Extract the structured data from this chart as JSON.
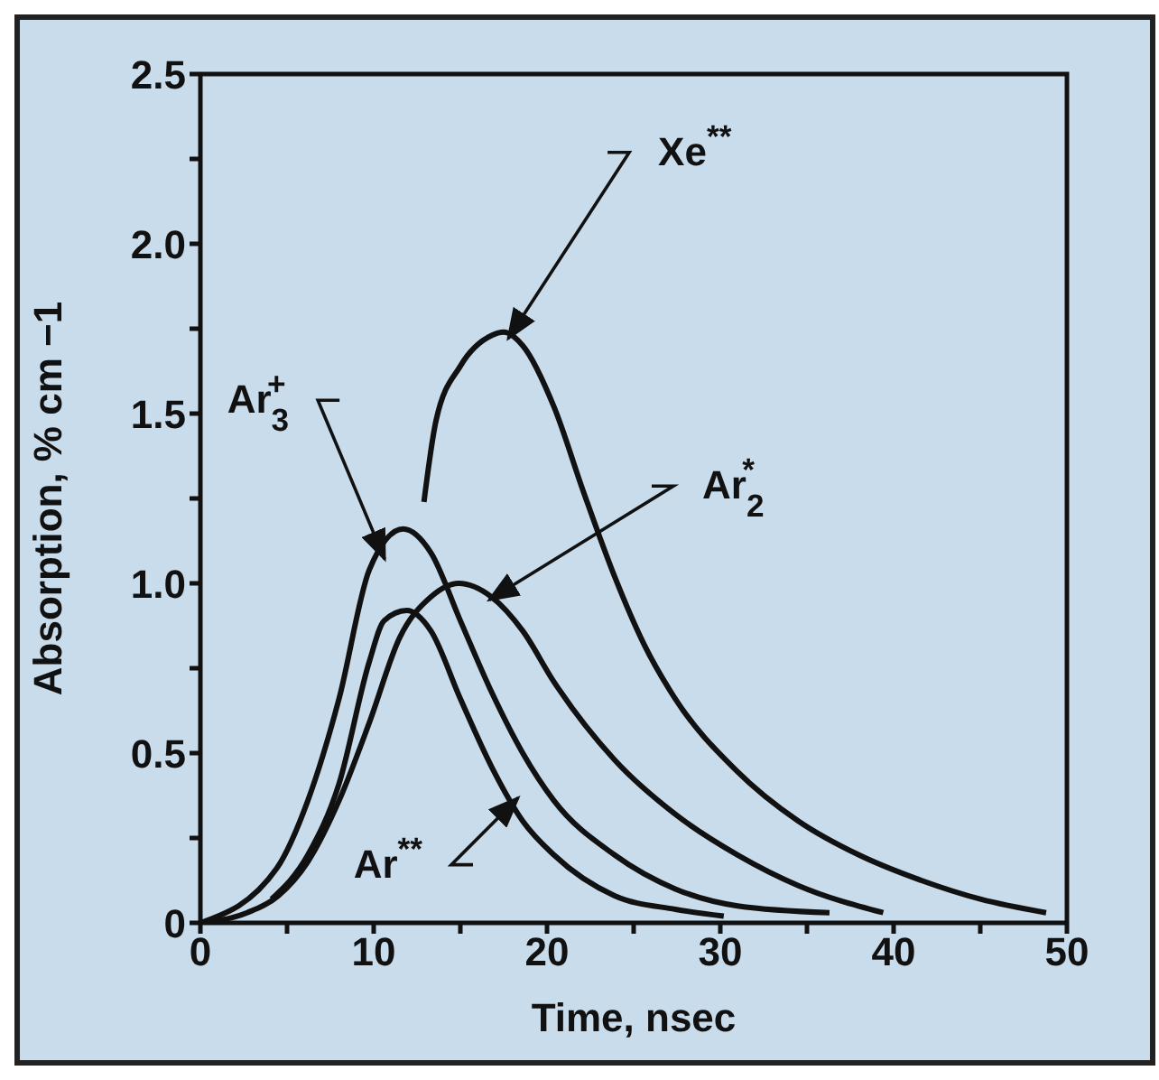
{
  "chart_data": {
    "type": "line",
    "xlabel": "Time, nsec",
    "ylabel": "Absorption, % cm −1",
    "xlim": [
      0,
      50
    ],
    "ylim": [
      0,
      2.5
    ],
    "xticks": [
      0,
      {
        "value": 5,
        "label": null
      },
      10,
      {
        "value": 15,
        "label": null
      },
      20,
      {
        "value": 25,
        "label": null
      },
      30,
      {
        "value": 35,
        "label": null
      },
      40,
      {
        "value": 45,
        "label": null
      },
      50
    ],
    "yticks": [
      0,
      {
        "value": 0.25,
        "label": null
      },
      0.5,
      {
        "value": 0.75,
        "label": null
      },
      {
        "value": 1,
        "label": "1.0"
      },
      {
        "value": 1.25,
        "label": null
      },
      1.5,
      {
        "value": 1.75,
        "label": null
      },
      {
        "value": 2,
        "label": "2.0"
      },
      {
        "value": 2.25,
        "label": null
      },
      2.5
    ],
    "marker": "none",
    "line_style": "solid",
    "series": [
      {
        "color": "#111111",
        "x": [
          0,
          4.4,
          6.2,
          8,
          9.75,
          11.7,
          13.3,
          15,
          16.8,
          18.6,
          20.4,
          23.9,
          27.4,
          31,
          36.3
        ],
        "values": [
          0,
          0.16,
          0.36,
          0.66,
          1.04,
          1.16,
          1.09,
          0.89,
          0.68,
          0.5,
          0.36,
          0.2,
          0.1,
          0.05,
          0.03
        ]
      },
      {
        "color": "#111111",
        "x": [
          4.1,
          6.2,
          8,
          9.75,
          10.6,
          11.9,
          13.3,
          15,
          16.8,
          18.6,
          20.4,
          23.9,
          27.4,
          30.2
        ],
        "values": [
          0.07,
          0.2,
          0.41,
          0.77,
          0.89,
          0.92,
          0.86,
          0.66,
          0.46,
          0.3,
          0.2,
          0.08,
          0.04,
          0.02
        ]
      },
      {
        "color": "#111111",
        "x": [
          0,
          2.7,
          4.5,
          6.2,
          8,
          9.75,
          11.5,
          13.3,
          14.9,
          16.8,
          18.6,
          20.4,
          23.9,
          27.4,
          31,
          34.5,
          39.4
        ],
        "values": [
          0,
          0.03,
          0.08,
          0.18,
          0.36,
          0.59,
          0.84,
          0.96,
          1.0,
          0.96,
          0.86,
          0.71,
          0.48,
          0.32,
          0.2,
          0.11,
          0.03
        ]
      },
      {
        "color": "#111111",
        "x": [
          12.9,
          13.6,
          15,
          16.8,
          17.5,
          18.6,
          20.4,
          22.1,
          23.9,
          25.6,
          27.4,
          30.9,
          34.5,
          38,
          41.6,
          45,
          48.8
        ],
        "values": [
          1.24,
          1.48,
          1.64,
          1.73,
          1.74,
          1.7,
          1.52,
          1.27,
          1.02,
          0.82,
          0.66,
          0.45,
          0.3,
          0.2,
          0.125,
          0.07,
          0.03
        ]
      }
    ],
    "annotations": [
      {
        "text": "Xe$^{**}$",
        "x": 18.6,
        "y": 1.7
      },
      {
        "text": "Ar$_{3}$$^{+}$",
        "x": 9.8,
        "y": 1.05
      },
      {
        "text": "Ar$_{2}$$^{*}$",
        "x": 17.5,
        "y": 0.93
      },
      {
        "text": "Ar$^{**}$",
        "x": 17.5,
        "y": 0.4
      }
    ]
  }
}
